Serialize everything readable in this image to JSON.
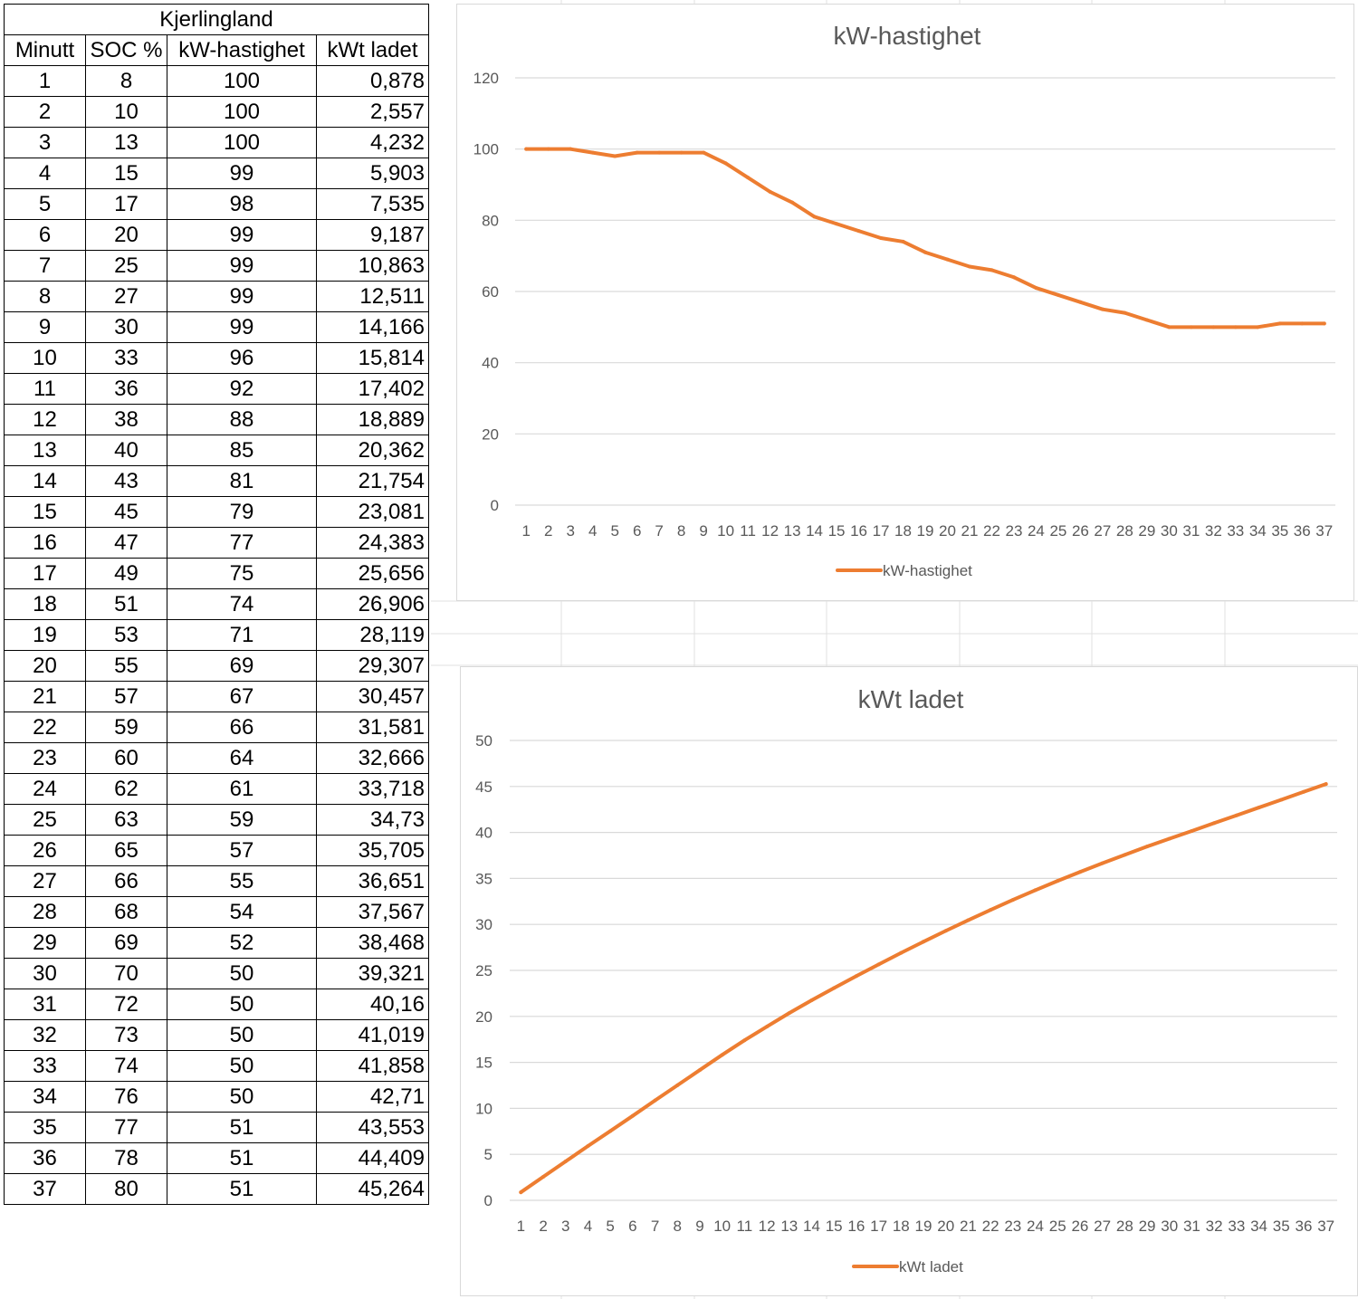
{
  "table": {
    "title": "Kjerlingland",
    "headers": [
      "Minutt",
      "SOC %",
      "kW-hastighet",
      "kWt ladet"
    ],
    "rows": [
      [
        "1",
        "8",
        "100",
        "0,878"
      ],
      [
        "2",
        "10",
        "100",
        "2,557"
      ],
      [
        "3",
        "13",
        "100",
        "4,232"
      ],
      [
        "4",
        "15",
        "99",
        "5,903"
      ],
      [
        "5",
        "17",
        "98",
        "7,535"
      ],
      [
        "6",
        "20",
        "99",
        "9,187"
      ],
      [
        "7",
        "25",
        "99",
        "10,863"
      ],
      [
        "8",
        "27",
        "99",
        "12,511"
      ],
      [
        "9",
        "30",
        "99",
        "14,166"
      ],
      [
        "10",
        "33",
        "96",
        "15,814"
      ],
      [
        "11",
        "36",
        "92",
        "17,402"
      ],
      [
        "12",
        "38",
        "88",
        "18,889"
      ],
      [
        "13",
        "40",
        "85",
        "20,362"
      ],
      [
        "14",
        "43",
        "81",
        "21,754"
      ],
      [
        "15",
        "45",
        "79",
        "23,081"
      ],
      [
        "16",
        "47",
        "77",
        "24,383"
      ],
      [
        "17",
        "49",
        "75",
        "25,656"
      ],
      [
        "18",
        "51",
        "74",
        "26,906"
      ],
      [
        "19",
        "53",
        "71",
        "28,119"
      ],
      [
        "20",
        "55",
        "69",
        "29,307"
      ],
      [
        "21",
        "57",
        "67",
        "30,457"
      ],
      [
        "22",
        "59",
        "66",
        "31,581"
      ],
      [
        "23",
        "60",
        "64",
        "32,666"
      ],
      [
        "24",
        "62",
        "61",
        "33,718"
      ],
      [
        "25",
        "63",
        "59",
        "34,73"
      ],
      [
        "26",
        "65",
        "57",
        "35,705"
      ],
      [
        "27",
        "66",
        "55",
        "36,651"
      ],
      [
        "28",
        "68",
        "54",
        "37,567"
      ],
      [
        "29",
        "69",
        "52",
        "38,468"
      ],
      [
        "30",
        "70",
        "50",
        "39,321"
      ],
      [
        "31",
        "72",
        "50",
        "40,16"
      ],
      [
        "32",
        "73",
        "50",
        "41,019"
      ],
      [
        "33",
        "74",
        "50",
        "41,858"
      ],
      [
        "34",
        "76",
        "50",
        "42,71"
      ],
      [
        "35",
        "77",
        "51",
        "43,553"
      ],
      [
        "36",
        "78",
        "51",
        "44,409"
      ],
      [
        "37",
        "80",
        "51",
        "45,264"
      ]
    ]
  },
  "colors": {
    "series": "#ED7D31",
    "gridline": "#d9d9d9",
    "axis_text": "#595959",
    "title_text": "#595959"
  },
  "chart_data": [
    {
      "type": "line",
      "title": "kW-hastighet",
      "xlabel": "",
      "ylabel": "",
      "categories": [
        "1",
        "2",
        "3",
        "4",
        "5",
        "6",
        "7",
        "8",
        "9",
        "10",
        "11",
        "12",
        "13",
        "14",
        "15",
        "16",
        "17",
        "18",
        "19",
        "20",
        "21",
        "22",
        "23",
        "24",
        "25",
        "26",
        "27",
        "28",
        "29",
        "30",
        "31",
        "32",
        "33",
        "34",
        "35",
        "36",
        "37"
      ],
      "series": [
        {
          "name": "kW-hastighet",
          "values": [
            100,
            100,
            100,
            99,
            98,
            99,
            99,
            99,
            99,
            96,
            92,
            88,
            85,
            81,
            79,
            77,
            75,
            74,
            71,
            69,
            67,
            66,
            64,
            61,
            59,
            57,
            55,
            54,
            52,
            50,
            50,
            50,
            50,
            50,
            51,
            51,
            51
          ]
        }
      ],
      "ylim": [
        0,
        120
      ],
      "yticks": [
        "0",
        "20",
        "40",
        "60",
        "80",
        "100",
        "120"
      ],
      "grid": true,
      "legend": "bottom"
    },
    {
      "type": "line",
      "title": "kWt ladet",
      "xlabel": "",
      "ylabel": "",
      "categories": [
        "1",
        "2",
        "3",
        "4",
        "5",
        "6",
        "7",
        "8",
        "9",
        "10",
        "11",
        "12",
        "13",
        "14",
        "15",
        "16",
        "17",
        "18",
        "19",
        "20",
        "21",
        "22",
        "23",
        "24",
        "25",
        "26",
        "27",
        "28",
        "29",
        "30",
        "31",
        "32",
        "33",
        "34",
        "35",
        "36",
        "37"
      ],
      "series": [
        {
          "name": "kWt ladet",
          "values": [
            0.878,
            2.557,
            4.232,
            5.903,
            7.535,
            9.187,
            10.863,
            12.511,
            14.166,
            15.814,
            17.402,
            18.889,
            20.362,
            21.754,
            23.081,
            24.383,
            25.656,
            26.906,
            28.119,
            29.307,
            30.457,
            31.581,
            32.666,
            33.718,
            34.73,
            35.705,
            36.651,
            37.567,
            38.468,
            39.321,
            40.16,
            41.019,
            41.858,
            42.71,
            43.553,
            44.409,
            45.264
          ]
        }
      ],
      "ylim": [
        0,
        50
      ],
      "yticks": [
        "0",
        "5",
        "10",
        "15",
        "20",
        "25",
        "30",
        "35",
        "40",
        "45",
        "50"
      ],
      "grid": true,
      "legend": "bottom"
    }
  ]
}
